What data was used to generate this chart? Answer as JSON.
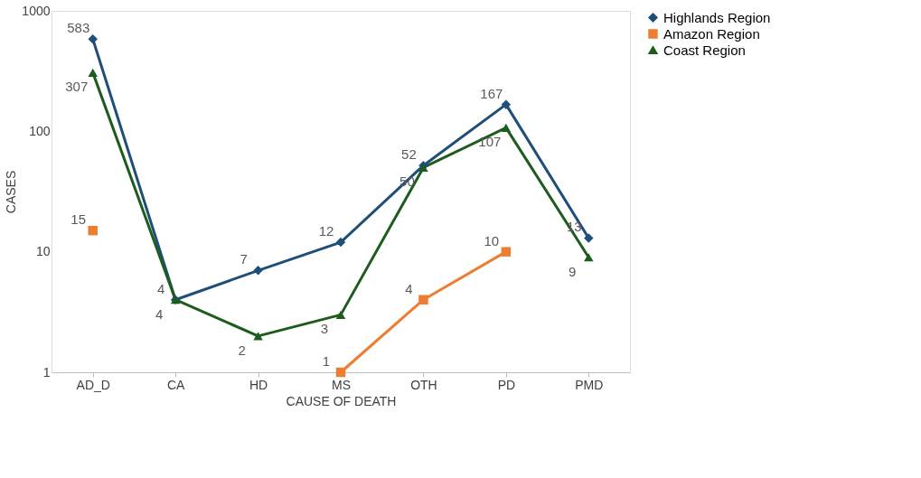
{
  "chart_data": {
    "type": "line",
    "xlabel": "CAUSE OF DEATH",
    "ylabel": "CASES",
    "categories": [
      "AD_D",
      "CA",
      "HD",
      "MS",
      "OTH",
      "PD",
      "PMD"
    ],
    "series": [
      {
        "name": "Highlands Region",
        "color": "#1f4e79",
        "marker": "diamond",
        "values": [
          583,
          4,
          7,
          12,
          52,
          167,
          13
        ]
      },
      {
        "name": "Amazon Region",
        "color": "#ed7d31",
        "marker": "square",
        "values": [
          15,
          null,
          null,
          1,
          4,
          10,
          null
        ]
      },
      {
        "name": "Coast Region",
        "color": "#1e5c1e",
        "marker": "triangle",
        "values": [
          307,
          4,
          2,
          3,
          50,
          107,
          9
        ]
      }
    ],
    "log": true,
    "ylim": [
      1,
      1000
    ],
    "yticks": [
      1,
      10,
      100,
      1000
    ],
    "grid": false,
    "legend": "right",
    "data_labels": true,
    "line_style": "solid"
  }
}
